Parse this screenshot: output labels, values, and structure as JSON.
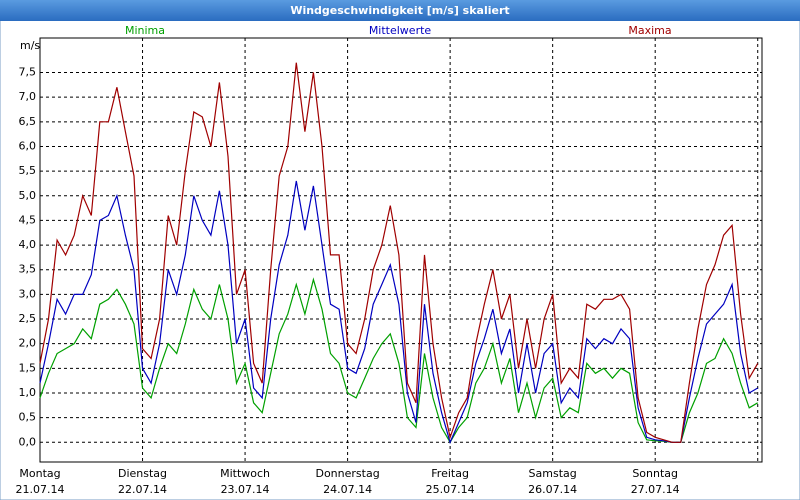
{
  "chart_data": {
    "type": "line",
    "title": "Windgeschwindigkeit [m/s] skaliert",
    "y_label": "m/s",
    "x": [
      0,
      2,
      4,
      6,
      8,
      10,
      12,
      14,
      16,
      18,
      20,
      22,
      24,
      26,
      28,
      30,
      32,
      34,
      36,
      38,
      40,
      42,
      44,
      46,
      48,
      50,
      52,
      54,
      56,
      58,
      60,
      62,
      64,
      66,
      68,
      70,
      72,
      74,
      76,
      78,
      80,
      82,
      84,
      86,
      88,
      90,
      92,
      94,
      96,
      98,
      100,
      102,
      104,
      106,
      108,
      110,
      112,
      114,
      116,
      118,
      120,
      122,
      124,
      126,
      128,
      130,
      132,
      134,
      136,
      138,
      140,
      142,
      144,
      146,
      148,
      150,
      152,
      154,
      156,
      158,
      160,
      162,
      164,
      166,
      168
    ],
    "series": [
      {
        "name": "Minima",
        "color": "#00a000",
        "values": [
          0.9,
          1.4,
          1.8,
          1.9,
          2.0,
          2.3,
          2.1,
          2.8,
          2.9,
          3.1,
          2.8,
          2.4,
          1.1,
          0.9,
          1.5,
          2.0,
          1.8,
          2.4,
          3.1,
          2.7,
          2.5,
          3.2,
          2.5,
          1.2,
          1.6,
          0.8,
          0.6,
          1.4,
          2.2,
          2.6,
          3.2,
          2.6,
          3.3,
          2.7,
          1.8,
          1.6,
          1.0,
          0.9,
          1.3,
          1.7,
          2.0,
          2.2,
          1.6,
          0.5,
          0.3,
          1.8,
          0.9,
          0.3,
          0.0,
          0.3,
          0.5,
          1.2,
          1.5,
          2.0,
          1.2,
          1.7,
          0.6,
          1.2,
          0.5,
          1.1,
          1.3,
          0.5,
          0.7,
          0.6,
          1.6,
          1.4,
          1.5,
          1.3,
          1.5,
          1.4,
          0.4,
          0.05,
          0.03,
          0.02,
          0.0,
          0.0,
          0.6,
          1.0,
          1.6,
          1.7,
          2.1,
          1.8,
          1.2,
          0.7,
          0.8
        ]
      },
      {
        "name": "Mittelwerte",
        "color": "#0000c0",
        "values": [
          1.2,
          2.0,
          2.9,
          2.6,
          3.0,
          3.0,
          3.4,
          4.5,
          4.6,
          5.0,
          4.2,
          3.5,
          1.5,
          1.2,
          2.0,
          3.5,
          3.0,
          3.8,
          5.0,
          4.5,
          4.2,
          5.1,
          4.0,
          2.0,
          2.5,
          1.1,
          0.9,
          2.5,
          3.6,
          4.2,
          5.3,
          4.3,
          5.2,
          4.0,
          2.8,
          2.7,
          1.5,
          1.4,
          1.9,
          2.8,
          3.2,
          3.6,
          2.8,
          1.0,
          0.4,
          2.8,
          1.4,
          0.6,
          0.0,
          0.4,
          0.8,
          1.6,
          2.1,
          2.7,
          1.8,
          2.3,
          1.0,
          2.0,
          1.0,
          1.8,
          2.0,
          0.8,
          1.1,
          0.9,
          2.1,
          1.9,
          2.1,
          2.0,
          2.3,
          2.1,
          0.7,
          0.1,
          0.05,
          0.03,
          0.0,
          0.0,
          0.9,
          1.7,
          2.4,
          2.6,
          2.8,
          3.2,
          1.8,
          1.0,
          1.1
        ]
      },
      {
        "name": "Maxima",
        "color": "#a00000",
        "values": [
          1.6,
          2.5,
          4.1,
          3.8,
          4.2,
          5.0,
          4.6,
          6.5,
          6.5,
          7.2,
          6.3,
          5.4,
          1.9,
          1.7,
          2.5,
          4.6,
          4.0,
          5.5,
          6.7,
          6.6,
          6.0,
          7.3,
          5.8,
          3.0,
          3.5,
          1.6,
          1.2,
          3.5,
          5.4,
          6.0,
          7.7,
          6.3,
          7.5,
          6.0,
          3.8,
          3.8,
          2.0,
          1.8,
          2.5,
          3.5,
          4.0,
          4.8,
          3.8,
          1.2,
          0.8,
          3.8,
          2.0,
          0.9,
          0.1,
          0.6,
          0.9,
          2.0,
          2.8,
          3.5,
          2.5,
          3.0,
          1.5,
          2.5,
          1.5,
          2.5,
          3.0,
          1.2,
          1.5,
          1.3,
          2.8,
          2.7,
          2.9,
          2.9,
          3.0,
          2.7,
          0.9,
          0.2,
          0.1,
          0.05,
          0.0,
          0.0,
          1.2,
          2.3,
          3.2,
          3.6,
          4.2,
          4.4,
          2.6,
          1.3,
          1.6
        ]
      }
    ],
    "xlim": [
      0,
      169
    ],
    "xticks": [
      {
        "value": 0,
        "label": "Montag",
        "date": "21.07.14"
      },
      {
        "value": 24,
        "label": "Dienstag",
        "date": "22.07.14"
      },
      {
        "value": 48,
        "label": "Mittwoch",
        "date": "23.07.14"
      },
      {
        "value": 72,
        "label": "Donnerstag",
        "date": "24.07.14"
      },
      {
        "value": 96,
        "label": "Freitag",
        "date": "25.07.14"
      },
      {
        "value": 120,
        "label": "Samstag",
        "date": "26.07.14"
      },
      {
        "value": 144,
        "label": "Sonntag",
        "date": "27.07.14"
      },
      {
        "value": 168,
        "label": "",
        "date": ""
      }
    ],
    "ylim": [
      -0.4,
      8.2
    ],
    "yticks": [
      {
        "value": 0,
        "label": "0,0"
      },
      {
        "value": 0.5,
        "label": "0,5"
      },
      {
        "value": 1,
        "label": "1,0"
      },
      {
        "value": 1.5,
        "label": "1,5"
      },
      {
        "value": 2,
        "label": "2,0"
      },
      {
        "value": 2.5,
        "label": "2,5"
      },
      {
        "value": 3,
        "label": "3,0"
      },
      {
        "value": 3.5,
        "label": "3,5"
      },
      {
        "value": 4,
        "label": "4,0"
      },
      {
        "value": 4.5,
        "label": "4,5"
      },
      {
        "value": 5,
        "label": "5,0"
      },
      {
        "value": 5.5,
        "label": "5,5"
      },
      {
        "value": 6,
        "label": "6,0"
      },
      {
        "value": 6.5,
        "label": "6,5"
      },
      {
        "value": 7,
        "label": "7,0"
      },
      {
        "value": 7.5,
        "label": "7,5"
      }
    ],
    "grid": true
  }
}
